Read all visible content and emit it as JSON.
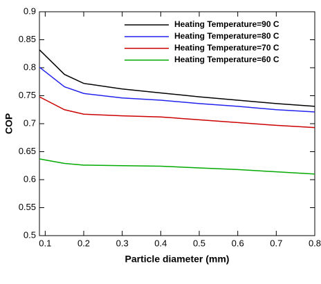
{
  "chart_data": {
    "type": "line",
    "x_label": "Particle diameter (mm)",
    "y_label": "COP",
    "x": [
      0.085,
      0.15,
      0.2,
      0.3,
      0.4,
      0.5,
      0.6,
      0.7,
      0.8
    ],
    "series": [
      {
        "name": "Heating Temperature=90 C",
        "color": "#000000",
        "values": [
          0.832,
          0.788,
          0.772,
          0.762,
          0.755,
          0.748,
          0.742,
          0.736,
          0.731
        ]
      },
      {
        "name": "Heating Temperature=80 C",
        "color": "#2222ee",
        "values": [
          0.801,
          0.766,
          0.754,
          0.746,
          0.742,
          0.736,
          0.731,
          0.725,
          0.721
        ]
      },
      {
        "name": "Heating Temperature=70 C",
        "color": "#cc0000",
        "values": [
          0.748,
          0.725,
          0.717,
          0.714,
          0.712,
          0.707,
          0.702,
          0.697,
          0.693
        ]
      },
      {
        "name": "Heating Temperature=60 C",
        "color": "#00aa00",
        "values": [
          0.637,
          0.629,
          0.626,
          0.625,
          0.624,
          0.621,
          0.618,
          0.614,
          0.61
        ]
      }
    ],
    "xlim": [
      0.085,
      0.8
    ],
    "xticks": [
      0.1,
      0.2,
      0.3,
      0.4,
      0.5,
      0.6,
      0.7,
      0.8
    ],
    "ylim": [
      0.5,
      0.9
    ],
    "yticks": [
      0.5,
      0.55,
      0.6,
      0.65,
      0.7,
      0.75,
      0.8,
      0.85,
      0.9
    ],
    "legend": "upper right",
    "grid": false
  }
}
